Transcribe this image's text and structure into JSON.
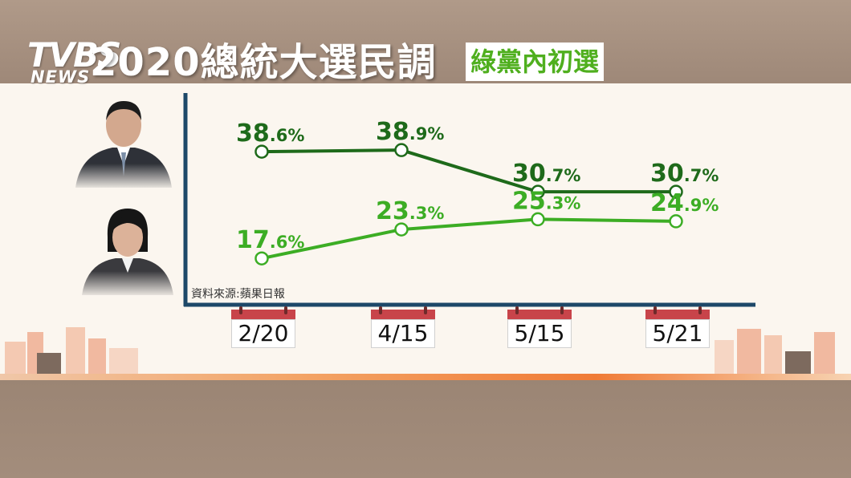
{
  "header": {
    "logo_main": "TVBS",
    "logo_sub": "NEWS",
    "title": "2020總統大選民調",
    "subtitle": "綠黨內初選"
  },
  "source": "資料來源:蘋果日報",
  "colors": {
    "series_dark": "#1e6a1a",
    "series_light": "#3cad24",
    "axis": "#1d4868",
    "accent_orange": "#f07b36"
  },
  "chart_data": {
    "type": "line",
    "categories": [
      "2/20",
      "4/15",
      "5/15",
      "5/21"
    ],
    "series": [
      {
        "values": [
          38.6,
          38.9,
          30.7,
          30.7
        ],
        "labels": [
          {
            "int": "38",
            "dec": ".6%"
          },
          {
            "int": "38",
            "dec": ".9%"
          },
          {
            "int": "30",
            "dec": ".7%"
          },
          {
            "int": "30",
            "dec": ".7%"
          }
        ]
      },
      {
        "values": [
          17.6,
          23.3,
          25.3,
          24.9
        ],
        "labels": [
          {
            "int": "17",
            "dec": ".6%"
          },
          {
            "int": "23",
            "dec": ".3%"
          },
          {
            "int": "25",
            "dec": ".3%"
          },
          {
            "int": "24",
            "dec": ".9%"
          }
        ]
      }
    ],
    "xlabel": "",
    "ylabel": "",
    "ylim": [
      10,
      45
    ],
    "grid": false,
    "legend": "none (candidate photos at left)"
  }
}
